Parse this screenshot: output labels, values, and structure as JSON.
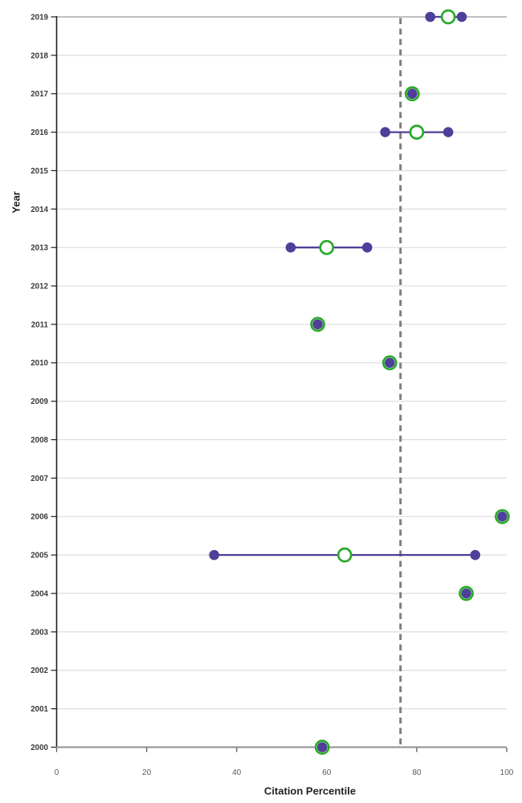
{
  "chart_data": {
    "type": "scatter",
    "title": "",
    "xlabel": "Citation Percentile",
    "ylabel": "Year",
    "xlim": [
      0,
      100
    ],
    "x_ticks": [
      0,
      20,
      40,
      60,
      80,
      100
    ],
    "grid": "horizontal",
    "legend": "none",
    "reference_line": {
      "orientation": "vertical",
      "value": 76.4,
      "style": "dashed"
    },
    "series": [
      {
        "name": "filled-dots",
        "marker": "filled-circle",
        "color": "#4E3F98"
      },
      {
        "name": "open-circles",
        "marker": "open-circle",
        "color": "#28AA28"
      }
    ],
    "rows": [
      {
        "year": 2019,
        "dots": [
          83,
          90
        ],
        "circle": 87,
        "range": [
          83,
          90
        ]
      },
      {
        "year": 2018,
        "dots": []
      },
      {
        "year": 2017,
        "dots": [
          79
        ],
        "circle": 79
      },
      {
        "year": 2016,
        "dots": [
          73,
          87
        ],
        "circle": 80,
        "range": [
          73,
          87
        ]
      },
      {
        "year": 2015,
        "dots": []
      },
      {
        "year": 2014,
        "dots": []
      },
      {
        "year": 2013,
        "dots": [
          52,
          69
        ],
        "circle": 60,
        "range": [
          52,
          69
        ]
      },
      {
        "year": 2012,
        "dots": []
      },
      {
        "year": 2011,
        "dots": [
          58
        ],
        "circle": 58
      },
      {
        "year": 2010,
        "dots": [
          74
        ],
        "circle": 74
      },
      {
        "year": 2009,
        "dots": []
      },
      {
        "year": 2008,
        "dots": []
      },
      {
        "year": 2007,
        "dots": []
      },
      {
        "year": 2006,
        "dots": [
          99
        ],
        "circle": 99
      },
      {
        "year": 2005,
        "dots": [
          35,
          93
        ],
        "circle": 64,
        "range": [
          35,
          93
        ]
      },
      {
        "year": 2004,
        "dots": [
          91
        ],
        "circle": 91
      },
      {
        "year": 2003,
        "dots": []
      },
      {
        "year": 2002,
        "dots": []
      },
      {
        "year": 2001,
        "dots": []
      },
      {
        "year": 2000,
        "dots": [
          59
        ],
        "circle": 59
      }
    ],
    "colors": {
      "dot": "#4E3F98",
      "line": "#4E3F98",
      "circle": "#28AA28",
      "circle_fill": "#FFFFFF",
      "reference": "#7F7F7F",
      "grid": "#DCDCDC",
      "grid_top": "#ACACAC",
      "axis": "#8F8F8F",
      "spine": "#1F1F1F",
      "tick": "#555555",
      "tick_label": "#595959",
      "year_label": "#3A3A3A"
    }
  }
}
